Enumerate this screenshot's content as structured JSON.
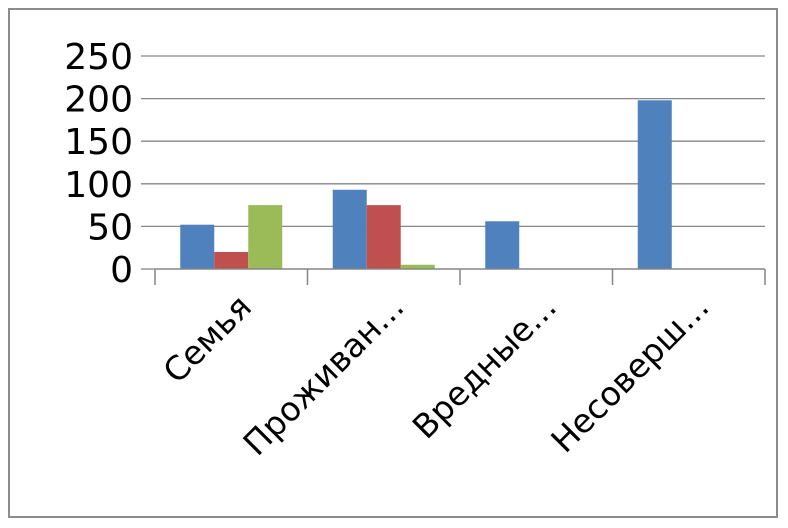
{
  "chart_data": {
    "type": "bar",
    "categories": [
      "Семья",
      "Проживан...",
      "Вредные...",
      "Несоверш..."
    ],
    "series": [
      {
        "values": [
          52,
          93,
          56,
          198
        ],
        "color": "#4f81bd"
      },
      {
        "values": [
          20,
          75,
          0,
          0
        ],
        "color": "#c0504d"
      },
      {
        "values": [
          75,
          5,
          0,
          0
        ],
        "color": "#9bbb59"
      }
    ],
    "ylim": [
      0,
      250
    ],
    "yticks": [
      "0",
      "50",
      "100",
      "150",
      "200",
      "250"
    ],
    "grid": true,
    "legend": "none",
    "gridline_color": "#868686",
    "axis_color": "#868686"
  }
}
